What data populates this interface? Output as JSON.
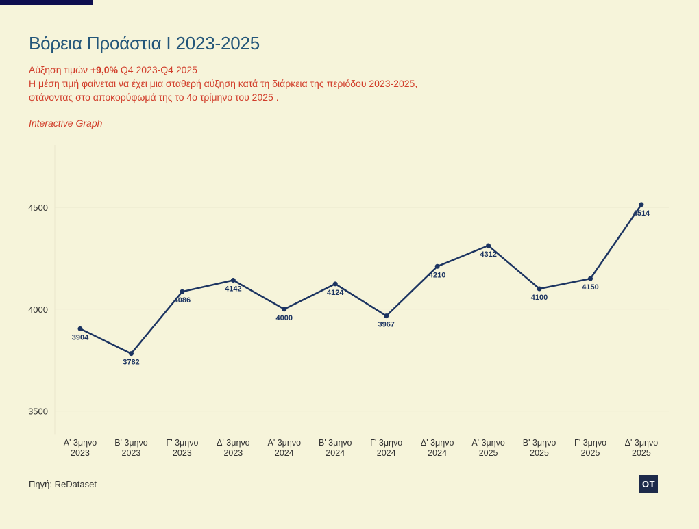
{
  "title": "Βόρεια Προάστια Ι 2023-2025",
  "subtitle": {
    "prefix": "Αύξηση τιμών ",
    "change": "+9,0%",
    "suffix": " Q4 2023-Q4 2025",
    "line2": "Η μέση τιμή φαίνεται να έχει μια σταθερή αύξηση κατά τη διάρκεια της περιόδου 2023-2025,",
    "line3": "φτάνοντας στο αποκορύφωμά της το 4ο τρίμηνο του 2025 ."
  },
  "interactive_label": "Interactive Graph",
  "source": "Πηγή: ReDataset",
  "logo_text": "OT",
  "colors": {
    "background": "#f6f4da",
    "line": "#1c3461",
    "title": "#245679",
    "accent": "#d13d2a",
    "corner": "#0e0e4f"
  },
  "chart_data": {
    "type": "line",
    "categories": [
      [
        "Α' 3μηνο",
        "2023"
      ],
      [
        "Β' 3μηνο",
        "2023"
      ],
      [
        "Γ' 3μηνο",
        "2023"
      ],
      [
        "Δ' 3μηνο",
        "2023"
      ],
      [
        "Α' 3μηνο",
        "2024"
      ],
      [
        "Β' 3μηνο",
        "2024"
      ],
      [
        "Γ' 3μηνο",
        "2024"
      ],
      [
        "Δ' 3μηνο",
        "2024"
      ],
      [
        "Α' 3μηνο",
        "2025"
      ],
      [
        "Β' 3μηνο",
        "2025"
      ],
      [
        "Γ' 3μηνο",
        "2025"
      ],
      [
        "Δ' 3μηνο",
        "2025"
      ]
    ],
    "values": [
      3904,
      3782,
      4086,
      4142,
      4000,
      4124,
      3967,
      4210,
      4312,
      4100,
      4150,
      4514
    ],
    "yticks": [
      3500,
      4000,
      4500
    ],
    "ylim": [
      3400,
      4800
    ],
    "grid": true,
    "data_labels": true,
    "legend": "none"
  }
}
